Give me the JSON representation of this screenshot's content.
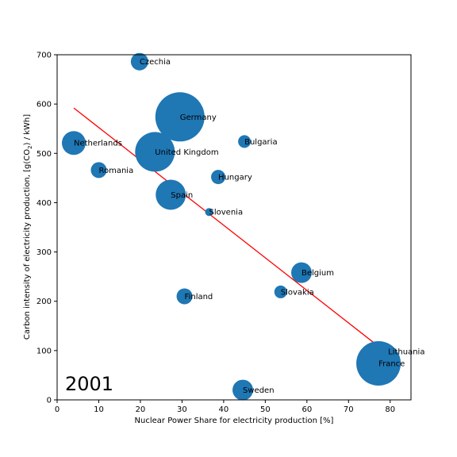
{
  "chart_data": {
    "type": "scatter",
    "xlabel": "Nuclear Power Share for electricity production [%]",
    "ylabel_parts": [
      "Carbon intensity of electricity production, [g(CO",
      "2",
      ") / kWh]"
    ],
    "year_label": "2001",
    "xlim": [
      0,
      85
    ],
    "ylim": [
      0,
      700
    ],
    "xticks": [
      0,
      10,
      20,
      30,
      40,
      50,
      60,
      70,
      80
    ],
    "yticks": [
      0,
      100,
      200,
      300,
      400,
      500,
      600,
      700
    ],
    "grid": false,
    "bubble_color": "#1f77b4",
    "trend_color": "#ff0000",
    "trend_line": {
      "x": [
        4,
        80
      ],
      "y": [
        592,
        90
      ]
    },
    "points": [
      {
        "label": "Czechia",
        "x": 19.8,
        "y": 686,
        "size": 11
      },
      {
        "label": "Germany",
        "x": 29.5,
        "y": 574,
        "size": 31
      },
      {
        "label": "Bulgaria",
        "x": 45,
        "y": 524,
        "size": 8
      },
      {
        "label": "Netherlands",
        "x": 4,
        "y": 521,
        "size": 15
      },
      {
        "label": "United Kingdom",
        "x": 23.5,
        "y": 503,
        "size": 25
      },
      {
        "label": "Romania",
        "x": 10,
        "y": 466,
        "size": 10
      },
      {
        "label": "Hungary",
        "x": 38.7,
        "y": 452,
        "size": 9
      },
      {
        "label": "Spain",
        "x": 27.3,
        "y": 416,
        "size": 19
      },
      {
        "label": "Slovenia",
        "x": 36.5,
        "y": 381,
        "size": 5
      },
      {
        "label": "Belgium",
        "x": 58.7,
        "y": 258,
        "size": 13
      },
      {
        "label": "Slovakia",
        "x": 53.7,
        "y": 219,
        "size": 8
      },
      {
        "label": "Finland",
        "x": 30.6,
        "y": 210,
        "size": 10
      },
      {
        "label": "Lithuania",
        "x": 79.5,
        "y": 98,
        "size": 5
      },
      {
        "label": "France",
        "x": 77.2,
        "y": 74,
        "size": 28
      },
      {
        "label": "Sweden",
        "x": 44.6,
        "y": 20,
        "size": 13
      }
    ]
  }
}
